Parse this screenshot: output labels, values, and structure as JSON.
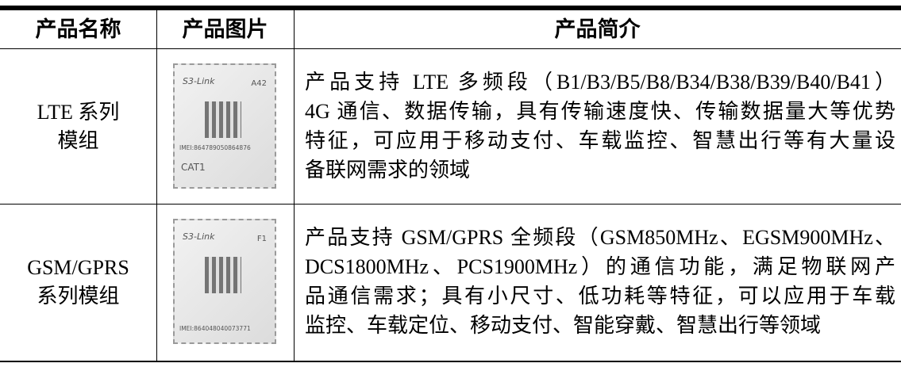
{
  "table": {
    "header": [
      "产品名称",
      "产品图片",
      "产品简介"
    ],
    "rows": [
      {
        "name": [
          "LTE 系列",
          "模组"
        ],
        "chip": {
          "brand": "S3-Link",
          "model": "A42",
          "imei": "IMEI:864789050864876",
          "tag": "CAT1"
        },
        "description": [
          "产品支持 LTE 多频段（B1/B3/B5/B8/B34/B38/B39/B40/B41）",
          "4G 通信、数据传输，具有传输速度快、传输数据量大等优势",
          "特征，可应用于移动支付、车载监控、智慧出行等有大量设",
          "备联网需求的领域"
        ]
      },
      {
        "name": [
          "GSM/GPRS",
          "系列模组"
        ],
        "chip": {
          "brand": "S3-Link",
          "model": "F1",
          "imei": "IMEI:864048040073771"
        },
        "description": [
          "产品支持 GSM/GPRS 全频段（GSM850MHz、EGSM900MHz、",
          "DCS1800MHz、PCS1900MHz）的通信功能，满足物联网产",
          "品通信需求；具有小尺寸、低功耗等特征，可以应用于车载",
          "监控、车载定位、移动支付、智能穿戴、智慧出行等领域"
        ]
      }
    ]
  }
}
